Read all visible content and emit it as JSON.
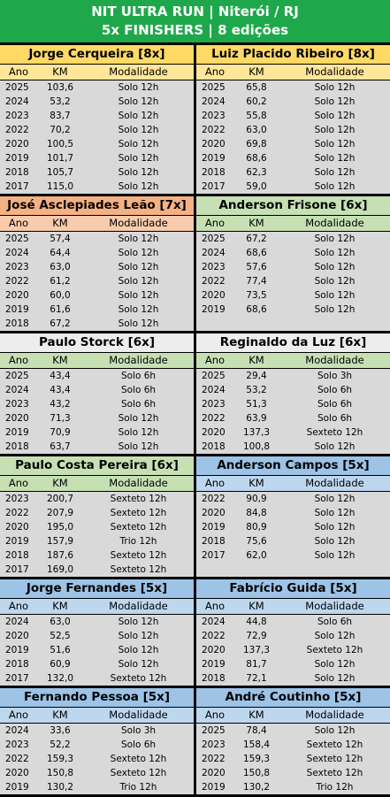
{
  "header": {
    "title": "NIT ULTRA RUN | Niterói / RJ",
    "subtitle": "5x FINISHERS | 8 edições"
  },
  "columns": [
    "Ano",
    "KM",
    "Modalidade"
  ],
  "blocks": [
    {
      "name": "Jorge Cerqueira [8x]",
      "rows": [
        [
          "2025",
          "103,6",
          "Solo 12h"
        ],
        [
          "2024",
          "53,2",
          "Solo 12h"
        ],
        [
          "2023",
          "83,7",
          "Solo 12h"
        ],
        [
          "2022",
          "70,2",
          "Solo 12h"
        ],
        [
          "2020",
          "100,5",
          "Solo 12h"
        ],
        [
          "2019",
          "101,7",
          "Solo 12h"
        ],
        [
          "2018",
          "105,7",
          "Solo 12h"
        ],
        [
          "2017",
          "115,0",
          "Solo 12h"
        ]
      ]
    },
    {
      "name": "Luiz Placido Ribeiro [8x]",
      "rows": [
        [
          "2025",
          "65,8",
          "Solo 12h"
        ],
        [
          "2024",
          "60,2",
          "Solo 12h"
        ],
        [
          "2023",
          "55,8",
          "Solo 12h"
        ],
        [
          "2022",
          "63,0",
          "Solo 12h"
        ],
        [
          "2020",
          "69,8",
          "Solo 12h"
        ],
        [
          "2019",
          "68,6",
          "Solo 12h"
        ],
        [
          "2018",
          "62,3",
          "Solo 12h"
        ],
        [
          "2017",
          "59,0",
          "Solo 12h"
        ]
      ]
    },
    {
      "name": "José Asclepiades Leão [7x]",
      "rows": [
        [
          "2025",
          "57,4",
          "Solo 12h"
        ],
        [
          "2024",
          "64,4",
          "Solo 12h"
        ],
        [
          "2023",
          "63,0",
          "Solo 12h"
        ],
        [
          "2022",
          "61,2",
          "Solo 12h"
        ],
        [
          "2020",
          "60,0",
          "Solo 12h"
        ],
        [
          "2019",
          "61,6",
          "Solo 12h"
        ],
        [
          "2018",
          "67,2",
          "Solo 12h"
        ]
      ]
    },
    {
      "name": "Anderson Frisone [6x]",
      "rows": [
        [
          "2025",
          "67,2",
          "Solo 12h"
        ],
        [
          "2024",
          "68,6",
          "Solo 12h"
        ],
        [
          "2023",
          "57,6",
          "Solo 12h"
        ],
        [
          "2022",
          "77,4",
          "Solo 12h"
        ],
        [
          "2020",
          "73,5",
          "Solo 12h"
        ],
        [
          "2019",
          "68,6",
          "Solo 12h"
        ]
      ]
    },
    {
      "name": "Paulo Storck [6x]",
      "rows": [
        [
          "2025",
          "43,4",
          "Solo 6h"
        ],
        [
          "2024",
          "43,4",
          "Solo 6h"
        ],
        [
          "2023",
          "43,2",
          "Solo 6h"
        ],
        [
          "2020",
          "71,3",
          "Solo 12h"
        ],
        [
          "2019",
          "70,9",
          "Solo 12h"
        ],
        [
          "2018",
          "63,7",
          "Solo 12h"
        ]
      ]
    },
    {
      "name": "Reginaldo da Luz [6x]",
      "rows": [
        [
          "2025",
          "29,4",
          "Solo 3h"
        ],
        [
          "2024",
          "53,2",
          "Solo 6h"
        ],
        [
          "2023",
          "51,3",
          "Solo 6h"
        ],
        [
          "2022",
          "63,9",
          "Solo 6h"
        ],
        [
          "2020",
          "137,3",
          "Sexteto 12h"
        ],
        [
          "2018",
          "100,8",
          "Solo 12h"
        ]
      ]
    },
    {
      "name": "Paulo Costa Pereira [6x]",
      "rows": [
        [
          "2023",
          "200,7",
          "Sexteto 12h"
        ],
        [
          "2022",
          "207,9",
          "Sexteto 12h"
        ],
        [
          "2020",
          "195,0",
          "Sexteto 12h"
        ],
        [
          "2019",
          "157,9",
          "Trio 12h"
        ],
        [
          "2018",
          "187,6",
          "Sexteto 12h"
        ],
        [
          "2017",
          "169,0",
          "Sexteto 12h"
        ]
      ]
    },
    {
      "name": "Anderson Campos [5x]",
      "rows": [
        [
          "2022",
          "90,9",
          "Solo 12h"
        ],
        [
          "2020",
          "84,8",
          "Solo 12h"
        ],
        [
          "2019",
          "80,9",
          "Solo 12h"
        ],
        [
          "2018",
          "75,6",
          "Solo 12h"
        ],
        [
          "2017",
          "62,0",
          "Solo 12h"
        ]
      ]
    },
    {
      "name": "Jorge Fernandes [5x]",
      "rows": [
        [
          "2024",
          "63,0",
          "Solo 12h"
        ],
        [
          "2020",
          "52,5",
          "Solo 12h"
        ],
        [
          "2019",
          "51,6",
          "Solo 12h"
        ],
        [
          "2018",
          "60,9",
          "Solo 12h"
        ],
        [
          "2017",
          "132,0",
          "Sexteto 12h"
        ]
      ]
    },
    {
      "name": "Fabrício Guida [5x]",
      "rows": [
        [
          "2024",
          "44,8",
          "Solo 6h"
        ],
        [
          "2022",
          "72,9",
          "Solo 12h"
        ],
        [
          "2020",
          "137,3",
          "Sexteto 12h"
        ],
        [
          "2019",
          "81,7",
          "Solo 12h"
        ],
        [
          "2018",
          "72,1",
          "Solo 12h"
        ]
      ]
    },
    {
      "name": "Fernando Pessoa [5x]",
      "rows": [
        [
          "2024",
          "33,6",
          "Solo 3h"
        ],
        [
          "2023",
          "52,2",
          "Solo 6h"
        ],
        [
          "2022",
          "159,3",
          "Sexteto 12h"
        ],
        [
          "2020",
          "150,8",
          "Sexteto 12h"
        ],
        [
          "2019",
          "130,2",
          "Trio 12h"
        ]
      ]
    },
    {
      "name": "André Coutinho [5x]",
      "rows": [
        [
          "2025",
          "78,4",
          "Solo 12h"
        ],
        [
          "2023",
          "158,4",
          "Sexteto 12h"
        ],
        [
          "2022",
          "159,3",
          "Sexteto 12h"
        ],
        [
          "2020",
          "150,8",
          "Sexteto 12h"
        ],
        [
          "2019",
          "130,2",
          "Trio 12h"
        ]
      ]
    }
  ]
}
